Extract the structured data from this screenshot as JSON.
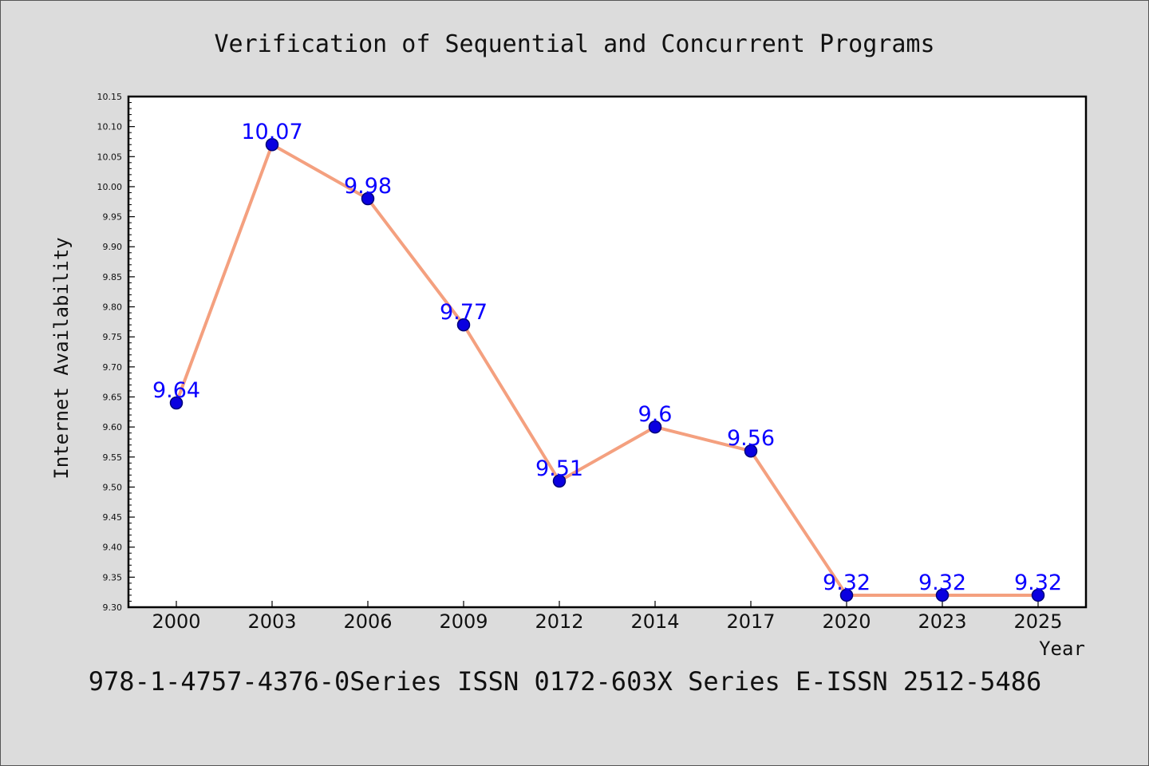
{
  "chart_data": {
    "type": "line",
    "title": "Verification of Sequential and Concurrent Programs",
    "xlabel": "Year",
    "ylabel": "Internet Availability",
    "footer": "978-1-4757-4376-0Series ISSN 0172-603X Series E-ISSN 2512-5486",
    "categories": [
      "2000",
      "2003",
      "2006",
      "2009",
      "2012",
      "2014",
      "2017",
      "2020",
      "2023",
      "2025"
    ],
    "series": [
      {
        "values": [
          9.64,
          10.07,
          9.98,
          9.77,
          9.51,
          9.6,
          9.56,
          9.32,
          9.32,
          9.32
        ],
        "data_labels": [
          "9.64",
          "10.07",
          "9.98",
          "9.77",
          "9.51",
          "9.6",
          "9.56",
          "9.32",
          "9.32",
          "9.32"
        ]
      }
    ],
    "ylim": [
      9.3,
      10.15
    ],
    "yticks": [
      "9.30",
      "9.35",
      "9.40",
      "9.45",
      "9.50",
      "9.55",
      "9.60",
      "9.65",
      "9.70",
      "9.75",
      "9.80",
      "9.85",
      "9.90",
      "9.95",
      "10.00",
      "10.05",
      "10.10",
      "10.15"
    ],
    "grid": false,
    "legend": "none",
    "colors": {
      "line": "#f4a07f",
      "marker_fill": "#0a00e0",
      "marker_edge": "#00007a",
      "data_label": "#0a00ff",
      "plot_background": "#ffffff",
      "figure_background": "#dcdcdc"
    }
  }
}
